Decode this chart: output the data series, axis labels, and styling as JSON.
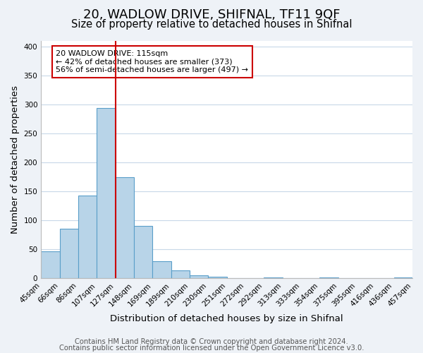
{
  "title": "20, WADLOW DRIVE, SHIFNAL, TF11 9QF",
  "subtitle": "Size of property relative to detached houses in Shifnal",
  "xlabel": "Distribution of detached houses by size in Shifnal",
  "ylabel": "Number of detached properties",
  "tick_labels": [
    "45sqm",
    "66sqm",
    "86sqm",
    "107sqm",
    "127sqm",
    "148sqm",
    "169sqm",
    "189sqm",
    "210sqm",
    "230sqm",
    "251sqm",
    "272sqm",
    "292sqm",
    "313sqm",
    "333sqm",
    "354sqm",
    "375sqm",
    "395sqm",
    "416sqm",
    "436sqm",
    "457sqm"
  ],
  "counts": [
    47,
    86,
    143,
    294,
    175,
    91,
    30,
    14,
    5,
    3,
    0,
    0,
    2,
    0,
    0,
    2,
    0,
    0,
    0,
    2
  ],
  "bar_color": "#b8d4e8",
  "bar_edge_color": "#5a9ec9",
  "vline_x": 3.5,
  "vline_color": "#cc0000",
  "annotation_title": "20 WADLOW DRIVE: 115sqm",
  "annotation_line1": "← 42% of detached houses are smaller (373)",
  "annotation_line2": "56% of semi-detached houses are larger (497) →",
  "annotation_box_color": "#ffffff",
  "annotation_box_edge": "#cc0000",
  "ylim": [
    0,
    410
  ],
  "footer1": "Contains HM Land Registry data © Crown copyright and database right 2024.",
  "footer2": "Contains public sector information licensed under the Open Government Licence v3.0.",
  "background_color": "#eef2f7",
  "plot_bg_color": "#ffffff",
  "grid_color": "#c8d8e8",
  "title_fontsize": 13,
  "subtitle_fontsize": 10.5,
  "axis_label_fontsize": 9.5,
  "tick_fontsize": 7.5,
  "footer_fontsize": 7.2
}
